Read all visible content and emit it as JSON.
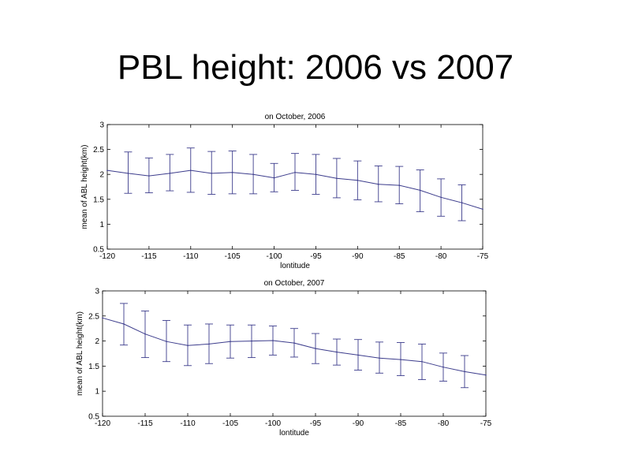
{
  "slide": {
    "title": "PBL height: 2006 vs 2007"
  },
  "colors": {
    "line": "#3c3c8c",
    "axis": "#000000"
  },
  "chart_data": [
    {
      "type": "line",
      "title": "on October, 2006",
      "xlabel": "lontitude",
      "ylabel": "mean of ABL height(km)",
      "xlim": [
        -120,
        -75
      ],
      "ylim": [
        0.5,
        3
      ],
      "xticks": [
        -120,
        -115,
        -110,
        -105,
        -100,
        -95,
        -90,
        -85,
        -80,
        -75
      ],
      "yticks": [
        0.5,
        1,
        1.5,
        2,
        2.5,
        3
      ],
      "grid": false,
      "x": [
        -120,
        -117.5,
        -115,
        -112.5,
        -110,
        -107.5,
        -105,
        -102.5,
        -100,
        -97.5,
        -95,
        -92.5,
        -90,
        -87.5,
        -85,
        -82.5,
        -80,
        -77.5,
        -75
      ],
      "series": [
        {
          "values": [
            2.08,
            2.02,
            1.97,
            2.02,
            2.08,
            2.02,
            2.04,
            2.0,
            1.93,
            2.04,
            2.0,
            1.92,
            1.88,
            1.8,
            1.78,
            1.68,
            1.54,
            1.43,
            1.3
          ],
          "error_low": [
            null,
            1.62,
            1.63,
            1.67,
            1.64,
            1.6,
            1.61,
            1.61,
            1.65,
            1.68,
            1.6,
            1.53,
            1.49,
            1.45,
            1.41,
            1.25,
            1.16,
            1.07,
            null
          ],
          "error_high": [
            null,
            2.45,
            2.33,
            2.4,
            2.53,
            2.46,
            2.47,
            2.4,
            2.22,
            2.42,
            2.4,
            2.32,
            2.27,
            2.17,
            2.16,
            2.09,
            1.91,
            1.79,
            null
          ]
        }
      ]
    },
    {
      "type": "line",
      "title": "on October, 2007",
      "xlabel": "lontitude",
      "ylabel": "mean of ABL height(km)",
      "xlim": [
        -120,
        -75
      ],
      "ylim": [
        0.5,
        3
      ],
      "xticks": [
        -120,
        -115,
        -110,
        -105,
        -100,
        -95,
        -90,
        -85,
        -80,
        -75
      ],
      "yticks": [
        0.5,
        1,
        1.5,
        2,
        2.5,
        3
      ],
      "grid": false,
      "x": [
        -120,
        -117.5,
        -115,
        -112.5,
        -110,
        -107.5,
        -105,
        -102.5,
        -100,
        -97.5,
        -95,
        -92.5,
        -90,
        -87.5,
        -85,
        -82.5,
        -80,
        -77.5,
        -75
      ],
      "series": [
        {
          "values": [
            2.46,
            2.34,
            2.14,
            1.99,
            1.91,
            1.94,
            1.99,
            2.0,
            2.01,
            1.96,
            1.85,
            1.78,
            1.72,
            1.66,
            1.63,
            1.59,
            1.48,
            1.39,
            1.32
          ],
          "error_low": [
            null,
            1.92,
            1.67,
            1.59,
            1.51,
            1.55,
            1.66,
            1.67,
            1.72,
            1.68,
            1.55,
            1.52,
            1.42,
            1.36,
            1.31,
            1.23,
            1.2,
            1.07,
            null
          ],
          "error_high": [
            null,
            2.75,
            2.6,
            2.41,
            2.32,
            2.34,
            2.32,
            2.32,
            2.3,
            2.25,
            2.15,
            2.04,
            2.03,
            1.98,
            1.97,
            1.94,
            1.76,
            1.71,
            null
          ]
        }
      ]
    }
  ]
}
